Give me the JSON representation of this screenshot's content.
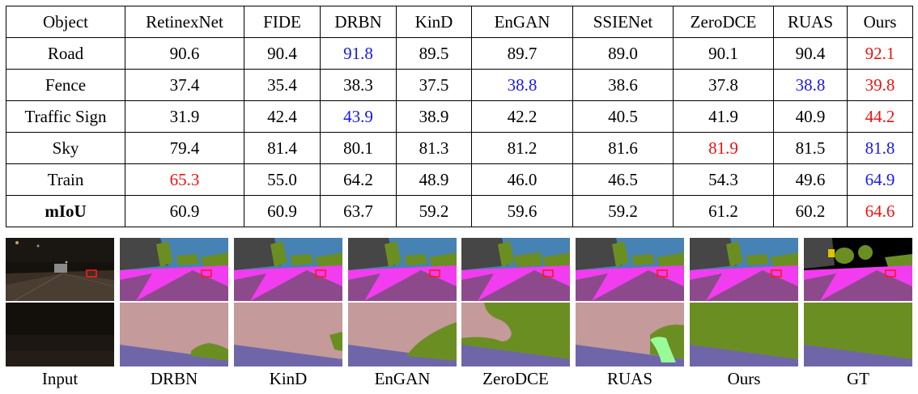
{
  "table": {
    "headers": [
      "Object",
      "RetinexNet",
      "FIDE",
      "DRBN",
      "KinD",
      "EnGAN",
      "SSIENet",
      "ZeroDCE",
      "RUAS",
      "Ours"
    ],
    "rows": [
      {
        "label": "Road",
        "bold_label": false,
        "values": [
          "90.6",
          "90.4",
          "91.8",
          "89.5",
          "89.7",
          "89.0",
          "90.1",
          "90.4",
          "92.1"
        ],
        "highlights": [
          "",
          "",
          "blue",
          "",
          "",
          "",
          "",
          "",
          "red"
        ]
      },
      {
        "label": "Fence",
        "bold_label": false,
        "values": [
          "37.4",
          "35.4",
          "38.3",
          "37.5",
          "38.8",
          "38.6",
          "37.8",
          "38.8",
          "39.8"
        ],
        "highlights": [
          "",
          "",
          "",
          "",
          "blue",
          "",
          "",
          "blue",
          "red"
        ]
      },
      {
        "label": "Traffic Sign",
        "bold_label": false,
        "values": [
          "31.9",
          "42.4",
          "43.9",
          "38.9",
          "42.2",
          "40.5",
          "41.9",
          "40.9",
          "44.2"
        ],
        "highlights": [
          "",
          "",
          "blue",
          "",
          "",
          "",
          "",
          "",
          "red"
        ]
      },
      {
        "label": "Sky",
        "bold_label": false,
        "values": [
          "79.4",
          "81.4",
          "80.1",
          "81.3",
          "81.2",
          "81.6",
          "81.9",
          "81.5",
          "81.8"
        ],
        "highlights": [
          "",
          "",
          "",
          "",
          "",
          "",
          "red",
          "",
          "blue"
        ]
      },
      {
        "label": "Train",
        "bold_label": false,
        "values": [
          "65.3",
          "55.0",
          "64.2",
          "48.9",
          "46.0",
          "46.5",
          "54.3",
          "49.6",
          "64.9"
        ],
        "highlights": [
          "red",
          "",
          "",
          "",
          "",
          "",
          "",
          "",
          "blue"
        ]
      },
      {
        "label": "mIoU",
        "bold_label": true,
        "values": [
          "60.9",
          "60.9",
          "63.7",
          "59.2",
          "59.6",
          "59.2",
          "61.2",
          "60.2",
          "64.6"
        ],
        "highlights": [
          "",
          "",
          "",
          "",
          "",
          "",
          "",
          "",
          "red"
        ]
      }
    ]
  },
  "figure": {
    "captions": [
      "Input",
      "DRBN",
      "KinD",
      "EnGAN",
      "ZeroDCE",
      "RUAS",
      "Ours",
      "GT"
    ]
  },
  "colors": {
    "best": "#ee1111",
    "second_best": "#1818e8",
    "seg_road": "#8c4a8c",
    "seg_sidewalk": "#f23cf0",
    "seg_vegetation": "#6b8e23",
    "seg_sky": "#4682b4",
    "seg_building": "#464646",
    "seg_terrain": "#c49a9a",
    "seg_lane": "#6f66aa",
    "seg_error_region": "#98fb98"
  }
}
